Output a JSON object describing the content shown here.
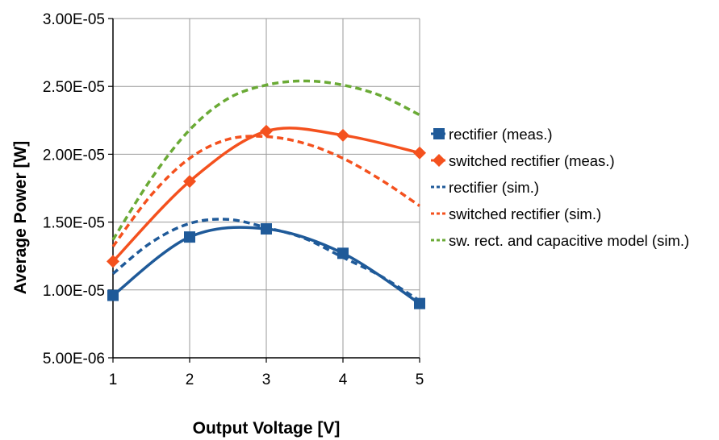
{
  "chart_data": {
    "type": "line",
    "xlabel": "Output Voltage [V]",
    "ylabel": "Average Power [W]",
    "xlim": [
      1,
      5
    ],
    "ylim": [
      5e-06,
      3e-05
    ],
    "x_ticks": [
      "1",
      "2",
      "3",
      "4",
      "5"
    ],
    "y_ticks": [
      "5.00E-06",
      "1.00E-05",
      "1.50E-05",
      "2.00E-05",
      "2.50E-05",
      "3.00E-05"
    ],
    "grid": true,
    "legend_position": "right",
    "series": [
      {
        "name": "rectifier (meas.)",
        "style": "solid-square",
        "color": "#1f5a99",
        "x": [
          1,
          2,
          3,
          4,
          5
        ],
        "values": [
          9.6e-06,
          1.39e-05,
          1.45e-05,
          1.27e-05,
          9e-06
        ]
      },
      {
        "name": "switched rectifier (meas.)",
        "style": "solid-diamond",
        "color": "#f4511e",
        "x": [
          1,
          2,
          3,
          4,
          5
        ],
        "values": [
          1.21e-05,
          1.8e-05,
          2.17e-05,
          2.14e-05,
          2.01e-05
        ]
      },
      {
        "name": "rectifier (sim.)",
        "style": "dashed",
        "color": "#1f5a99",
        "x": [
          1,
          1.5,
          2,
          2.5,
          3,
          3.5,
          4,
          4.5,
          5
        ],
        "values": [
          1.12e-05,
          1.35e-05,
          1.49e-05,
          1.52e-05,
          1.46e-05,
          1.38e-05,
          1.24e-05,
          1.1e-05,
          9.2e-06
        ]
      },
      {
        "name": "switched rectifier (sim.)",
        "style": "dashed",
        "color": "#f4511e",
        "x": [
          1,
          1.5,
          2,
          2.5,
          3,
          3.5,
          4,
          4.5,
          5
        ],
        "values": [
          1.32e-05,
          1.7e-05,
          1.97e-05,
          2.11e-05,
          2.13e-05,
          2.08e-05,
          1.97e-05,
          1.81e-05,
          1.62e-05
        ]
      },
      {
        "name": "sw. rect. and capacitive model (sim.)",
        "style": "dashed",
        "color": "#6aaa35",
        "x": [
          1,
          1.5,
          2,
          2.5,
          3,
          3.5,
          4,
          4.5,
          5
        ],
        "values": [
          1.37e-05,
          1.82e-05,
          2.18e-05,
          2.41e-05,
          2.51e-05,
          2.54e-05,
          2.51e-05,
          2.43e-05,
          2.29e-05
        ]
      }
    ]
  }
}
